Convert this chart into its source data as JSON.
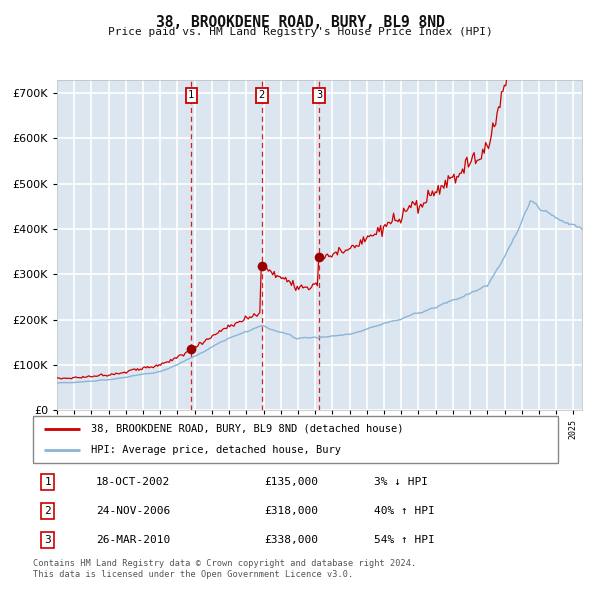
{
  "title": "38, BROOKDENE ROAD, BURY, BL9 8ND",
  "subtitle": "Price paid vs. HM Land Registry's House Price Index (HPI)",
  "background_color": "#dce6f0",
  "plot_bg_color": "#dce6f0",
  "grid_color": "#ffffff",
  "hpi_color": "#8ab4d8",
  "price_color": "#cc0000",
  "sale_marker_color": "#990000",
  "xlim_start": 1995.0,
  "xlim_end": 2025.5,
  "ylim_min": 0,
  "ylim_max": 730000,
  "yticks": [
    0,
    100000,
    200000,
    300000,
    400000,
    500000,
    600000,
    700000
  ],
  "ytick_labels": [
    "£0",
    "£100K",
    "£200K",
    "£300K",
    "£400K",
    "£500K",
    "£600K",
    "£700K"
  ],
  "sale_dates": [
    2002.8,
    2006.9,
    2010.23
  ],
  "sale_prices": [
    135000,
    318000,
    338000
  ],
  "sale_labels": [
    "1",
    "2",
    "3"
  ],
  "legend_line1": "38, BROOKDENE ROAD, BURY, BL9 8ND (detached house)",
  "legend_line2": "HPI: Average price, detached house, Bury",
  "table_entries": [
    {
      "num": "1",
      "date": "18-OCT-2002",
      "price": "£135,000",
      "pct": "3% ↓ HPI"
    },
    {
      "num": "2",
      "date": "24-NOV-2006",
      "price": "£318,000",
      "pct": "40% ↑ HPI"
    },
    {
      "num": "3",
      "date": "26-MAR-2010",
      "price": "£338,000",
      "pct": "54% ↑ HPI"
    }
  ],
  "footnote": "Contains HM Land Registry data © Crown copyright and database right 2024.\nThis data is licensed under the Open Government Licence v3.0."
}
